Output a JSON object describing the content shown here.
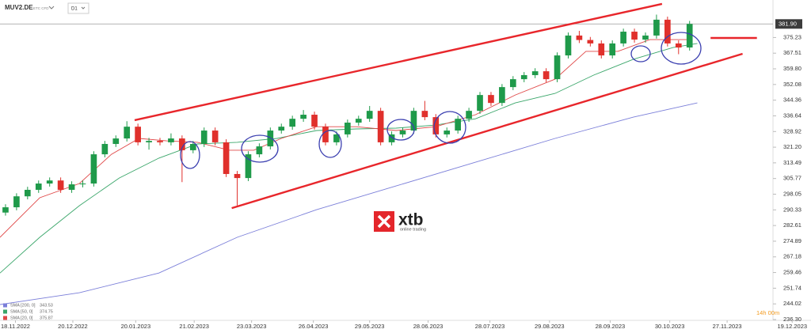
{
  "chart_data": {
    "type": "candlestick",
    "symbol": "MUV2.DE",
    "symbol_note": "ETC CFD",
    "timeframe": "D1",
    "timer": "14h 00m",
    "logo": {
      "name": "xtb",
      "tagline": "online trading"
    },
    "up_color": "#1f9a4a",
    "down_color": "#e0302c",
    "xlim": [
      0,
      73
    ],
    "xticks": [
      {
        "value": 1.4,
        "label": "18.11.2022"
      },
      {
        "value": 6.6,
        "label": "20.12.2022"
      },
      {
        "value": 12.3,
        "label": "20.01.2023"
      },
      {
        "value": 17.6,
        "label": "21.02.2023"
      },
      {
        "value": 22.8,
        "label": "23.03.2023"
      },
      {
        "value": 28.4,
        "label": "26.04.2023"
      },
      {
        "value": 33.5,
        "label": "29.05.2023"
      },
      {
        "value": 38.8,
        "label": "28.06.2023"
      },
      {
        "value": 44.4,
        "label": "28.07.2023"
      },
      {
        "value": 49.8,
        "label": "29.08.2023"
      },
      {
        "value": 55.3,
        "label": "28.09.2023"
      },
      {
        "value": 60.7,
        "label": "30.10.2023"
      },
      {
        "value": 65.9,
        "label": "27.11.2023"
      },
      {
        "value": 71.8,
        "label": "19.12.2023"
      }
    ],
    "ylim": [
      236.3,
      393.7
    ],
    "yticks": [
      375.23,
      367.51,
      {
        "value": 359.8,
        "label": "359.80"
      },
      352.08,
      344.36,
      336.64,
      328.92,
      {
        "value": 321.2,
        "label": "321.20"
      },
      313.49,
      305.77,
      298.05,
      290.33,
      282.61,
      274.89,
      267.18,
      259.46,
      251.74,
      244.02,
      {
        "value": 236.3,
        "label": "236.30"
      }
    ],
    "last_price": {
      "value": 381.9,
      "label": "381.90"
    },
    "open": [
      289.0,
      291.6,
      297.0,
      300.2,
      303.3,
      304.8,
      300.2,
      302.9,
      303.3,
      317.7,
      322.8,
      325.5,
      331.3,
      323.6,
      324.3,
      323.6,
      325.5,
      319.7,
      322.8,
      329.4,
      323.6,
      308.0,
      306.0,
      317.7,
      321.6,
      329.4,
      331.3,
      335.2,
      337.2,
      331.3,
      323.6,
      327.5,
      333.3,
      335.2,
      339.1,
      323.6,
      327.5,
      329.4,
      339.1,
      336.0,
      327.5,
      329.4,
      335.2,
      339.1,
      346.9,
      343.0,
      350.8,
      354.7,
      356.7,
      358.6,
      354.7,
      366.4,
      376.2,
      374.0,
      372.3,
      366.4,
      372.3,
      378.1,
      374.2,
      376.2,
      384.0,
      372.3,
      370.3
    ],
    "high": [
      293.1,
      298.5,
      301.7,
      304.8,
      306.3,
      306.3,
      304.4,
      304.8,
      319.2,
      324.3,
      327.0,
      334.0,
      332.8,
      325.8,
      325.8,
      328.0,
      327.0,
      324.3,
      330.9,
      330.9,
      325.1,
      309.5,
      319.2,
      323.1,
      330.9,
      332.8,
      336.7,
      339.5,
      338.7,
      332.8,
      329.0,
      334.8,
      336.7,
      341.5,
      340.6,
      329.0,
      330.9,
      340.6,
      344.0,
      337.5,
      330.9,
      336.7,
      340.6,
      348.4,
      348.4,
      352.3,
      356.2,
      358.2,
      360.1,
      360.1,
      367.9,
      377.7,
      378.5,
      375.5,
      373.8,
      373.8,
      379.6,
      379.6,
      377.7,
      386.5,
      385.5,
      373.8,
      383.4
    ],
    "low": [
      287.5,
      290.1,
      295.5,
      298.7,
      301.8,
      298.7,
      298.7,
      301.4,
      301.8,
      316.2,
      321.3,
      324.0,
      322.1,
      320.0,
      322.1,
      322.1,
      304.0,
      318.2,
      321.3,
      322.1,
      306.5,
      292.5,
      304.5,
      316.2,
      320.1,
      327.9,
      329.8,
      333.7,
      329.8,
      322.1,
      322.1,
      326.0,
      331.8,
      333.7,
      322.1,
      322.1,
      326.0,
      327.9,
      334.5,
      326.0,
      326.0,
      327.9,
      333.7,
      337.6,
      341.5,
      341.5,
      349.3,
      353.2,
      355.2,
      353.2,
      353.2,
      364.9,
      372.5,
      370.8,
      364.9,
      364.9,
      370.8,
      372.7,
      372.7,
      374.7,
      370.8,
      367.0,
      368.8
    ],
    "close": [
      291.6,
      297.0,
      300.2,
      303.3,
      304.8,
      300.2,
      302.9,
      303.3,
      317.7,
      322.8,
      325.5,
      331.3,
      323.6,
      324.3,
      323.6,
      325.5,
      319.7,
      322.8,
      329.4,
      323.6,
      308.0,
      306.0,
      317.7,
      321.6,
      329.4,
      331.3,
      335.2,
      337.2,
      331.3,
      323.6,
      327.5,
      333.3,
      335.2,
      339.1,
      323.6,
      327.5,
      329.4,
      339.1,
      336.0,
      327.5,
      329.4,
      335.2,
      339.1,
      346.9,
      343.0,
      350.8,
      354.7,
      356.7,
      358.6,
      354.7,
      366.4,
      376.2,
      374.0,
      372.3,
      366.4,
      372.3,
      378.1,
      374.2,
      376.2,
      384.0,
      372.3,
      370.3,
      381.9
    ],
    "series": [
      {
        "name": "SMA [200, 0]",
        "legend_value": 343.53,
        "color": "#7b7fd9",
        "x": [
          0,
          7.2,
          14.4,
          21.5,
          28.7,
          35.9,
          43.1,
          50.3,
          57.4,
          63.2
        ],
        "values": [
          243.7,
          249.5,
          259.2,
          276.8,
          290.4,
          302.1,
          313.8,
          325.5,
          336.0,
          343.0
        ]
      },
      {
        "name": "SMA [50, 0]",
        "legend_value": 374.75,
        "color": "#3aa66a",
        "x": [
          0,
          3.6,
          7.2,
          10.8,
          14.4,
          17.9,
          21.5,
          25.1,
          28.7,
          32.3,
          35.9,
          39.5,
          43.1,
          46.7,
          50.3,
          53.8,
          57.4,
          61.0,
          63.2
        ],
        "values": [
          259.2,
          276.8,
          292.4,
          306.0,
          315.8,
          322.8,
          323.6,
          325.5,
          329.4,
          330.2,
          330.6,
          332.1,
          335.2,
          343.0,
          347.7,
          356.7,
          364.5,
          370.3,
          372.3
        ]
      },
      {
        "name": "SMA [20, 0]",
        "legend_value": 375.87,
        "color": "#e04848",
        "x": [
          0,
          3.6,
          7.2,
          10.1,
          12.6,
          15.1,
          17.9,
          20.8,
          23.0,
          25.5,
          28.7,
          32.3,
          35.9,
          39.5,
          43.1,
          46.7,
          50.3,
          53.1,
          56.0,
          58.9,
          62.5
        ],
        "values": [
          276.8,
          296.3,
          303.3,
          317.7,
          325.5,
          324.3,
          323.6,
          319.7,
          319.7,
          325.5,
          331.3,
          331.3,
          329.4,
          331.3,
          337.2,
          346.9,
          354.7,
          368.4,
          368.4,
          374.2,
          374.2
        ]
      }
    ],
    "trendlines": [
      {
        "color": "#e8262b",
        "x": [
          12.2,
          60.0
        ],
        "values": [
          334.5,
          391.8
        ]
      },
      {
        "color": "#e8262b",
        "x": [
          21.0,
          67.3
        ],
        "values": [
          291.2,
          367.2
        ]
      },
      {
        "color": "#e8262b",
        "x": [
          64.4,
          68.6
        ],
        "values": [
          375.0,
          375.0
        ]
      }
    ]
  }
}
